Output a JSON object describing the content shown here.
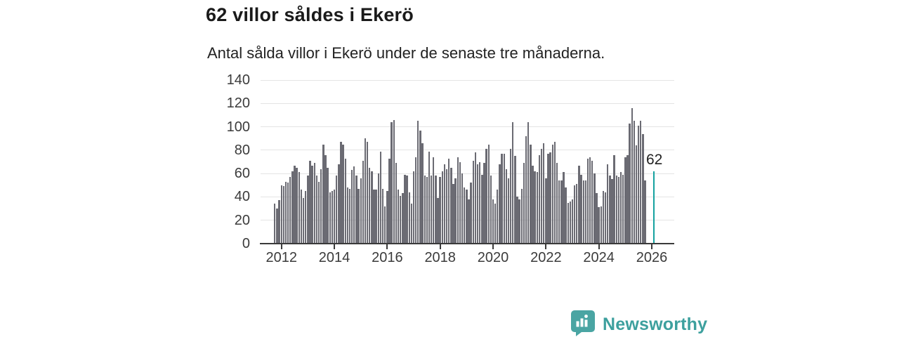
{
  "header": {
    "title": "62 villor såldes i Ekerö",
    "subtitle": "Antal sålda villor i Ekerö under de senaste tre månaderna."
  },
  "annotation": {
    "label": "62"
  },
  "branding": {
    "name": "Newsworthy",
    "icon": "bar-chart-speech-bubble-icon",
    "color": "#45a4a2"
  },
  "chart_data": {
    "type": "bar",
    "title": "62 villor såldes i Ekerö",
    "subtitle": "Antal sålda villor i Ekerö under de senaste tre månaderna.",
    "x_start_month": "2011-10",
    "x_frequency": "monthly",
    "values": [
      34,
      30,
      37,
      50,
      49,
      53,
      52,
      57,
      62,
      67,
      65,
      61,
      46,
      39,
      45,
      58,
      71,
      67,
      69,
      58,
      53,
      64,
      85,
      76,
      65,
      44,
      45,
      46,
      58,
      68,
      87,
      85,
      73,
      48,
      47,
      63,
      66,
      58,
      47,
      56,
      71,
      90,
      87,
      65,
      62,
      46,
      46,
      60,
      79,
      47,
      32,
      45,
      73,
      104,
      106,
      69,
      46,
      41,
      43,
      59,
      58,
      44,
      34,
      62,
      74,
      105,
      97,
      86,
      58,
      57,
      79,
      58,
      74,
      58,
      39,
      57,
      62,
      68,
      64,
      73,
      65,
      51,
      56,
      74,
      70,
      60,
      48,
      46,
      38,
      52,
      71,
      78,
      68,
      70,
      59,
      69,
      81,
      85,
      58,
      38,
      34,
      46,
      68,
      77,
      77,
      64,
      56,
      81,
      104,
      75,
      40,
      38,
      47,
      69,
      92,
      104,
      85,
      67,
      62,
      61,
      76,
      81,
      86,
      56,
      77,
      78,
      85,
      87,
      69,
      54,
      54,
      61,
      48,
      35,
      36,
      38,
      50,
      51,
      67,
      59,
      54,
      54,
      73,
      74,
      71,
      60,
      43,
      31,
      32,
      45,
      44,
      68,
      58,
      55,
      76,
      58,
      57,
      61,
      59,
      74,
      76,
      103,
      116,
      105,
      84,
      101,
      105,
      94,
      54,
      null,
      null,
      null,
      62
    ],
    "highlight": {
      "index": 172,
      "value": 62,
      "label": "62",
      "color": "#15a2a0"
    },
    "bar_color": "#6b6b73",
    "ylim": [
      0,
      140
    ],
    "yticks": [
      0,
      20,
      40,
      60,
      80,
      100,
      120,
      140
    ],
    "xticks": [
      {
        "year": "2012",
        "slot": 3
      },
      {
        "year": "2014",
        "slot": 27
      },
      {
        "year": "2016",
        "slot": 51
      },
      {
        "year": "2018",
        "slot": 75
      },
      {
        "year": "2020",
        "slot": 99
      },
      {
        "year": "2022",
        "slot": 123
      },
      {
        "year": "2024",
        "slot": 147
      },
      {
        "year": "2026",
        "slot": 171
      }
    ],
    "grid": true,
    "legend": false
  }
}
